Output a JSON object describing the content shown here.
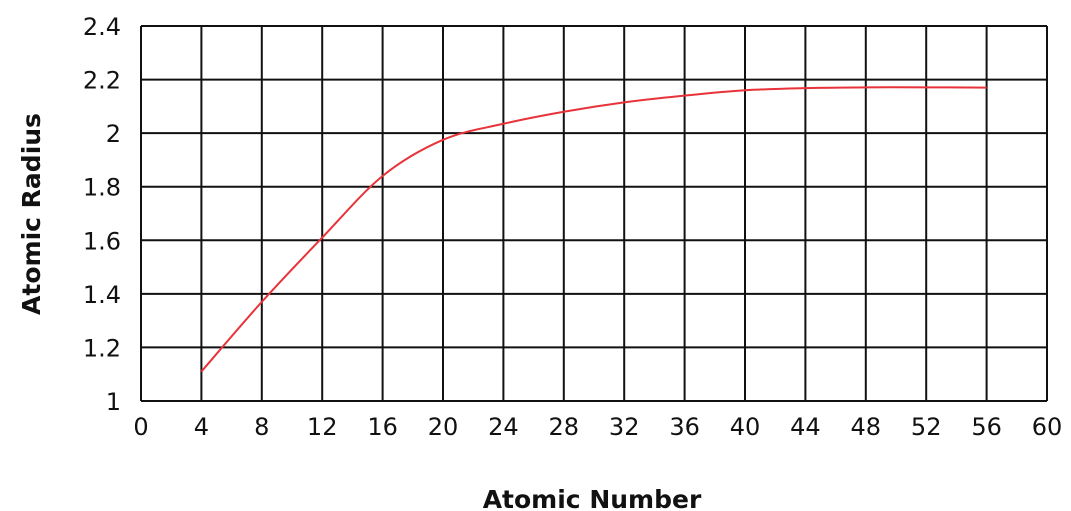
{
  "chart_data": {
    "type": "line",
    "xlabel": "Atomic Number",
    "ylabel": "Atomic Radius",
    "xlim": [
      0,
      60
    ],
    "ylim": [
      1,
      2.4
    ],
    "xticks": [
      0,
      4,
      8,
      12,
      16,
      20,
      24,
      28,
      32,
      36,
      40,
      44,
      48,
      52,
      56,
      60
    ],
    "yticks": [
      1,
      1.2,
      1.4,
      1.6,
      1.8,
      2,
      2.2,
      2.4
    ],
    "xtick_labels": [
      "0",
      "4",
      "8",
      "12",
      "16",
      "20",
      "24",
      "28",
      "32",
      "36",
      "40",
      "44",
      "48",
      "52",
      "56",
      "60"
    ],
    "ytick_labels": [
      "1",
      "1.2",
      "1.4",
      "1.6",
      "1.8",
      "2",
      "2.2",
      "2.4"
    ],
    "grid": true,
    "series": [
      {
        "color": "#e8333a",
        "x": [
          4,
          8,
          12,
          16,
          20,
          24,
          28,
          32,
          36,
          40,
          44,
          48,
          52,
          56
        ],
        "y": [
          1.11,
          1.37,
          1.61,
          1.84,
          1.975,
          2.035,
          2.08,
          2.115,
          2.14,
          2.16,
          2.168,
          2.171,
          2.171,
          2.17
        ]
      }
    ]
  }
}
